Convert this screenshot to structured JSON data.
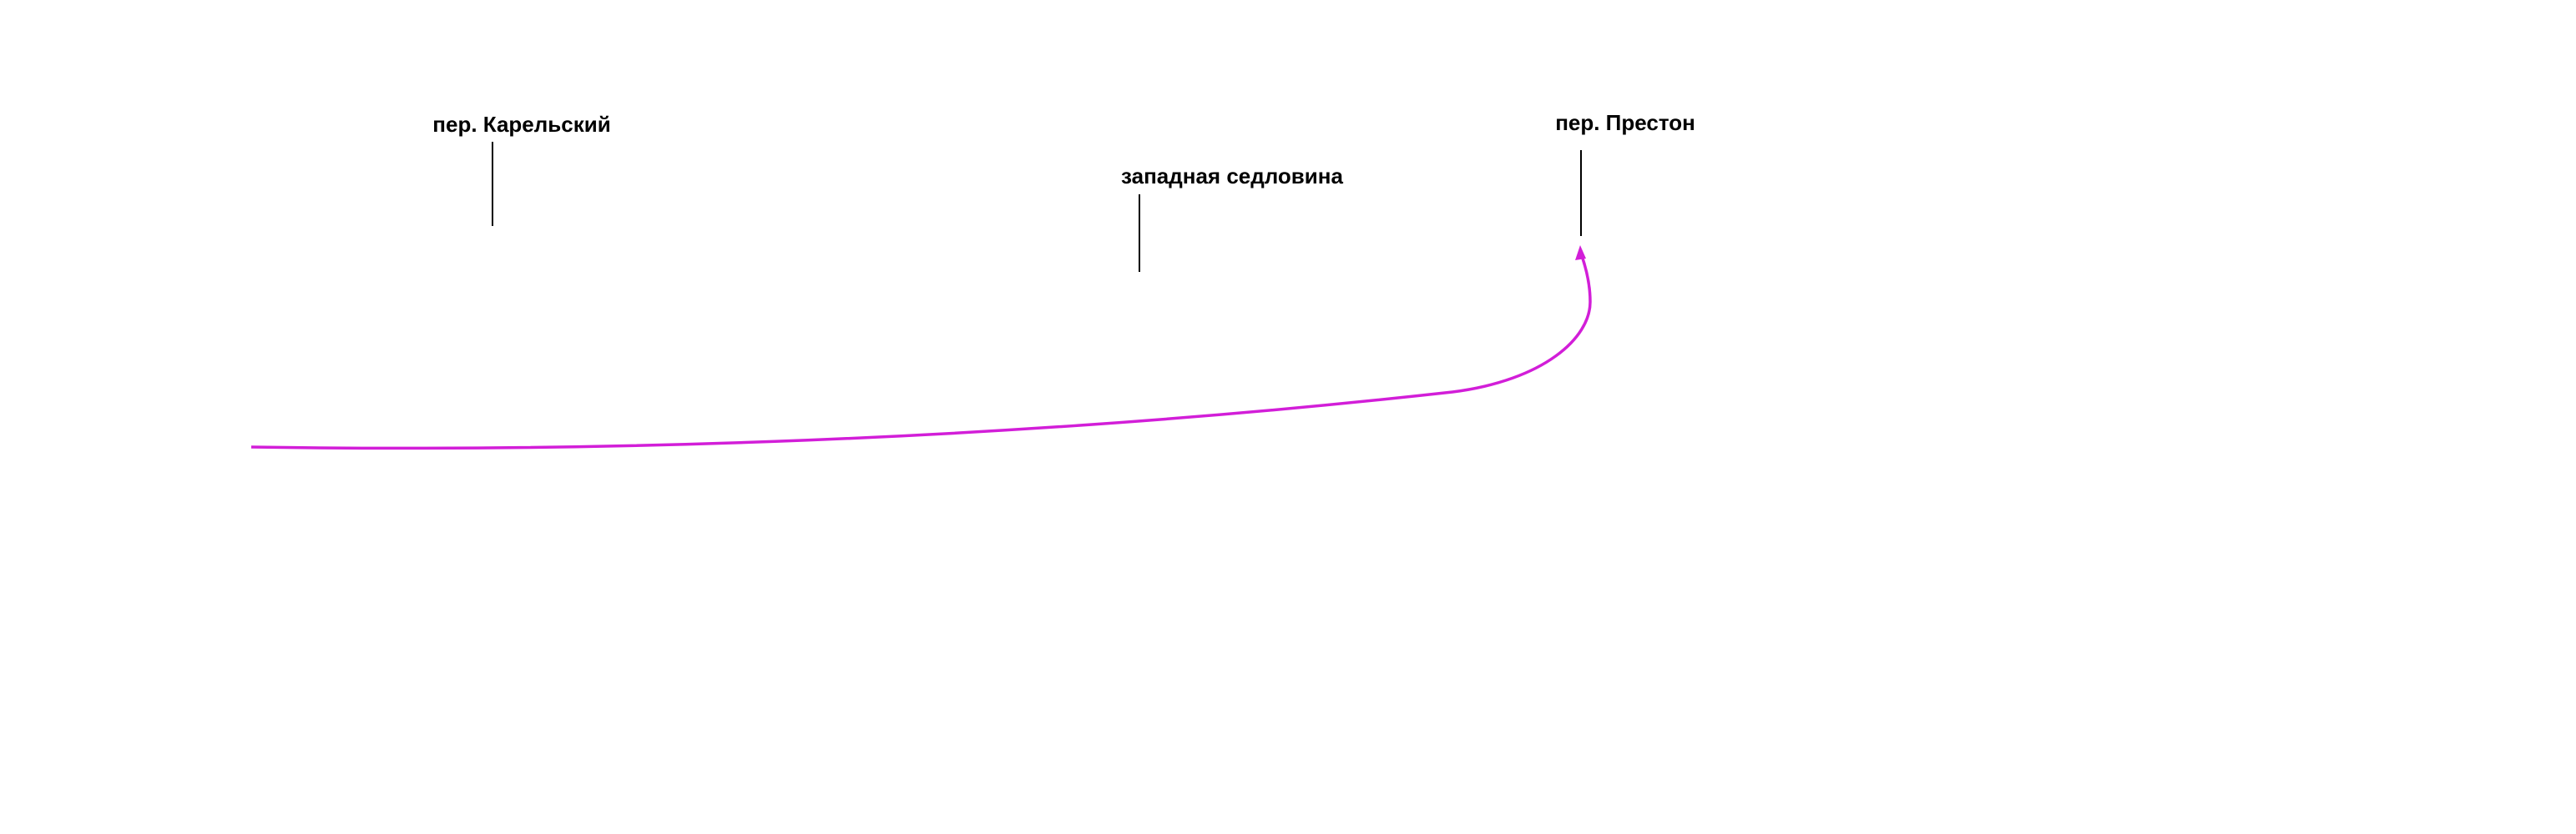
{
  "labels": [
    "пер. Карельский",
    "западная седловина",
    "пер. Престон"
  ]
}
